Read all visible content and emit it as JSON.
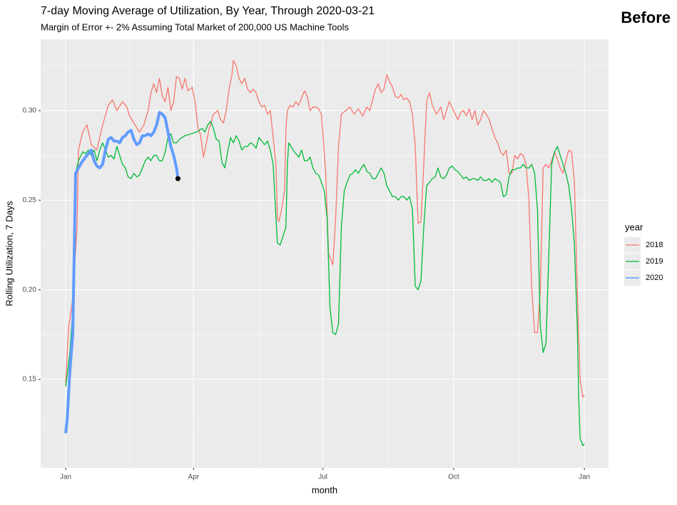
{
  "chart_data": {
    "type": "line",
    "title": "7-day Moving Average of Utilization, By Year, Through 2020-03-21",
    "subtitle": "Margin of Error +- 2% Assuming Total Market of 200,000 US Machine Tools",
    "annotation": "Before",
    "x_label": "month",
    "y_label": "Rolling Utilization, 7 Days",
    "legend_title": "year",
    "legend_position": "right",
    "grid": true,
    "xlim": [
      -17.6,
      382
    ],
    "ylim": [
      0.1006,
      0.3398
    ],
    "xticks": [
      {
        "value": 0,
        "label": "Jan"
      },
      {
        "value": 90,
        "label": "Apr"
      },
      {
        "value": 181,
        "label": "Jul"
      },
      {
        "value": 273,
        "label": "Oct"
      },
      {
        "value": 365,
        "label": "Jan"
      }
    ],
    "minor_xticks": [
      45,
      136,
      227,
      319
    ],
    "yticks": [
      {
        "value": 0.15,
        "label": "0.15"
      },
      {
        "value": 0.2,
        "label": "0.20"
      },
      {
        "value": 0.25,
        "label": "0.25"
      },
      {
        "value": 0.3,
        "label": "0.30"
      }
    ],
    "minor_yticks": [
      0.125,
      0.175,
      0.225,
      0.275,
      0.325
    ],
    "series": [
      {
        "name": "2018",
        "color": "#F8766D",
        "width": 1.3,
        "x": [
          0,
          2,
          5,
          8,
          9,
          12,
          15,
          18,
          22,
          26,
          30,
          33,
          36,
          40,
          43,
          45,
          48,
          52,
          55,
          58,
          60,
          62,
          64,
          66,
          68,
          70,
          72,
          74,
          76,
          78,
          80,
          82,
          84,
          86,
          89,
          91,
          93,
          95,
          97,
          99,
          101,
          104,
          107,
          109,
          111,
          113,
          115,
          117,
          118,
          120,
          122,
          124,
          126,
          128,
          130,
          132,
          134,
          136,
          138,
          140,
          142,
          144,
          146,
          148,
          149,
          150,
          152,
          154,
          155,
          156,
          158,
          160,
          162,
          164,
          166,
          168,
          170,
          172,
          174,
          176,
          178,
          180,
          183,
          185,
          188,
          190,
          192,
          194,
          197,
          200,
          203,
          206,
          209,
          212,
          214,
          216,
          218,
          220,
          222,
          224,
          226,
          228,
          230,
          232,
          234,
          236,
          238,
          240,
          242,
          244,
          246,
          248,
          250,
          252,
          254,
          256,
          258,
          261,
          264,
          266,
          268,
          270,
          273,
          276,
          278,
          280,
          282,
          284,
          286,
          288,
          290,
          292,
          294,
          296,
          298,
          300,
          302,
          304,
          306,
          308,
          310,
          312,
          314,
          316,
          318,
          320,
          322,
          324,
          326,
          328,
          330,
          332,
          334,
          336,
          338,
          340,
          342,
          344,
          346,
          348,
          350,
          352,
          354,
          356,
          358,
          360,
          362,
          364,
          365
        ],
        "values": [
          0.148,
          0.178,
          0.195,
          0.235,
          0.278,
          0.288,
          0.292,
          0.281,
          0.278,
          0.292,
          0.303,
          0.306,
          0.3,
          0.305,
          0.302,
          0.297,
          0.293,
          0.288,
          0.292,
          0.3,
          0.31,
          0.315,
          0.31,
          0.318,
          0.308,
          0.305,
          0.313,
          0.3,
          0.305,
          0.319,
          0.318,
          0.312,
          0.318,
          0.311,
          0.313,
          0.305,
          0.291,
          0.286,
          0.274,
          0.282,
          0.29,
          0.298,
          0.3,
          0.295,
          0.293,
          0.3,
          0.312,
          0.32,
          0.328,
          0.325,
          0.318,
          0.315,
          0.318,
          0.312,
          0.31,
          0.312,
          0.31,
          0.305,
          0.302,
          0.303,
          0.298,
          0.3,
          0.285,
          0.27,
          0.24,
          0.238,
          0.245,
          0.255,
          0.29,
          0.3,
          0.303,
          0.302,
          0.305,
          0.303,
          0.307,
          0.311,
          0.308,
          0.3,
          0.302,
          0.302,
          0.301,
          0.298,
          0.265,
          0.22,
          0.214,
          0.24,
          0.28,
          0.298,
          0.3,
          0.302,
          0.298,
          0.301,
          0.297,
          0.302,
          0.3,
          0.306,
          0.312,
          0.315,
          0.31,
          0.312,
          0.32,
          0.316,
          0.313,
          0.308,
          0.307,
          0.309,
          0.306,
          0.307,
          0.305,
          0.298,
          0.28,
          0.237,
          0.238,
          0.27,
          0.305,
          0.31,
          0.303,
          0.298,
          0.302,
          0.295,
          0.3,
          0.305,
          0.3,
          0.295,
          0.299,
          0.3,
          0.297,
          0.301,
          0.295,
          0.3,
          0.292,
          0.295,
          0.3,
          0.298,
          0.295,
          0.29,
          0.285,
          0.282,
          0.277,
          0.275,
          0.278,
          0.265,
          0.265,
          0.275,
          0.273,
          0.276,
          0.275,
          0.27,
          0.25,
          0.2,
          0.176,
          0.176,
          0.2,
          0.268,
          0.27,
          0.268,
          0.272,
          0.277,
          0.273,
          0.268,
          0.265,
          0.272,
          0.278,
          0.277,
          0.26,
          0.2,
          0.15,
          0.14,
          0.141
        ]
      },
      {
        "name": "2019",
        "color": "#00BA38",
        "width": 1.3,
        "x": [
          0,
          3,
          6,
          7,
          9,
          12,
          14,
          16,
          18,
          20,
          22,
          24,
          26,
          28,
          30,
          32,
          34,
          36,
          38,
          40,
          42,
          44,
          46,
          48,
          50,
          52,
          54,
          56,
          58,
          60,
          62,
          64,
          66,
          68,
          70,
          72,
          74,
          76,
          78,
          80,
          84,
          88,
          92,
          96,
          98,
          100,
          102,
          104,
          106,
          108,
          110,
          112,
          114,
          116,
          118,
          120,
          122,
          124,
          126,
          128,
          130,
          132,
          134,
          136,
          138,
          140,
          142,
          144,
          146,
          148,
          149,
          151,
          153,
          155,
          156,
          157,
          160,
          162,
          164,
          166,
          168,
          170,
          172,
          174,
          176,
          178,
          180,
          182,
          184,
          186,
          188,
          190,
          192,
          194,
          196,
          198,
          200,
          202,
          204,
          206,
          208,
          210,
          212,
          214,
          216,
          218,
          220,
          222,
          224,
          226,
          228,
          230,
          232,
          234,
          236,
          238,
          240,
          242,
          244,
          246,
          248,
          250,
          252,
          254,
          256,
          258,
          260,
          262,
          264,
          266,
          268,
          270,
          272,
          274,
          276,
          278,
          280,
          282,
          284,
          286,
          288,
          290,
          292,
          294,
          296,
          298,
          300,
          302,
          304,
          306,
          308,
          310,
          312,
          314,
          316,
          318,
          320,
          322,
          324,
          326,
          328,
          330,
          332,
          334,
          336,
          338,
          340,
          342,
          344,
          346,
          348,
          350,
          352,
          354,
          356,
          358,
          360,
          361,
          362,
          364,
          365
        ],
        "values": [
          0.146,
          0.165,
          0.2,
          0.265,
          0.272,
          0.277,
          0.276,
          0.278,
          0.275,
          0.278,
          0.272,
          0.278,
          0.282,
          0.278,
          0.274,
          0.275,
          0.273,
          0.28,
          0.275,
          0.27,
          0.268,
          0.263,
          0.262,
          0.265,
          0.263,
          0.264,
          0.268,
          0.272,
          0.274,
          0.272,
          0.275,
          0.275,
          0.272,
          0.272,
          0.277,
          0.285,
          0.287,
          0.282,
          0.282,
          0.284,
          0.286,
          0.287,
          0.288,
          0.29,
          0.288,
          0.292,
          0.294,
          0.29,
          0.284,
          0.283,
          0.271,
          0.268,
          0.277,
          0.285,
          0.282,
          0.286,
          0.283,
          0.278,
          0.28,
          0.28,
          0.282,
          0.281,
          0.279,
          0.285,
          0.283,
          0.281,
          0.283,
          0.278,
          0.27,
          0.24,
          0.226,
          0.225,
          0.23,
          0.235,
          0.27,
          0.282,
          0.278,
          0.276,
          0.274,
          0.278,
          0.272,
          0.272,
          0.274,
          0.268,
          0.265,
          0.264,
          0.26,
          0.255,
          0.24,
          0.19,
          0.176,
          0.175,
          0.181,
          0.235,
          0.255,
          0.26,
          0.264,
          0.265,
          0.267,
          0.265,
          0.268,
          0.27,
          0.266,
          0.265,
          0.262,
          0.262,
          0.265,
          0.268,
          0.265,
          0.258,
          0.255,
          0.252,
          0.252,
          0.25,
          0.252,
          0.252,
          0.25,
          0.252,
          0.245,
          0.202,
          0.2,
          0.205,
          0.235,
          0.258,
          0.26,
          0.262,
          0.263,
          0.268,
          0.263,
          0.262,
          0.264,
          0.268,
          0.269,
          0.267,
          0.266,
          0.264,
          0.262,
          0.263,
          0.261,
          0.262,
          0.262,
          0.261,
          0.263,
          0.261,
          0.261,
          0.262,
          0.26,
          0.262,
          0.261,
          0.26,
          0.252,
          0.253,
          0.263,
          0.267,
          0.267,
          0.268,
          0.268,
          0.27,
          0.268,
          0.268,
          0.27,
          0.265,
          0.245,
          0.18,
          0.165,
          0.17,
          0.22,
          0.27,
          0.277,
          0.28,
          0.275,
          0.27,
          0.265,
          0.258,
          0.245,
          0.225,
          0.18,
          0.14,
          0.117,
          0.113,
          0.114
        ]
      },
      {
        "name": "2020",
        "color": "#619CFF",
        "width": 4,
        "end_marker": true,
        "x": [
          0,
          1,
          3,
          5,
          7,
          9,
          12,
          15,
          18,
          20,
          22,
          24,
          26,
          28,
          30,
          32,
          34,
          36,
          38,
          40,
          42,
          44,
          46,
          48,
          50,
          52,
          54,
          56,
          58,
          60,
          62,
          64,
          66,
          68,
          70,
          72,
          74,
          76,
          78,
          79
        ],
        "values": [
          0.12,
          0.127,
          0.155,
          0.175,
          0.265,
          0.268,
          0.272,
          0.275,
          0.278,
          0.272,
          0.269,
          0.268,
          0.27,
          0.278,
          0.284,
          0.285,
          0.283,
          0.283,
          0.282,
          0.285,
          0.286,
          0.288,
          0.289,
          0.284,
          0.281,
          0.282,
          0.286,
          0.286,
          0.287,
          0.286,
          0.288,
          0.292,
          0.299,
          0.298,
          0.296,
          0.288,
          0.28,
          0.275,
          0.268,
          0.262
        ]
      }
    ]
  }
}
